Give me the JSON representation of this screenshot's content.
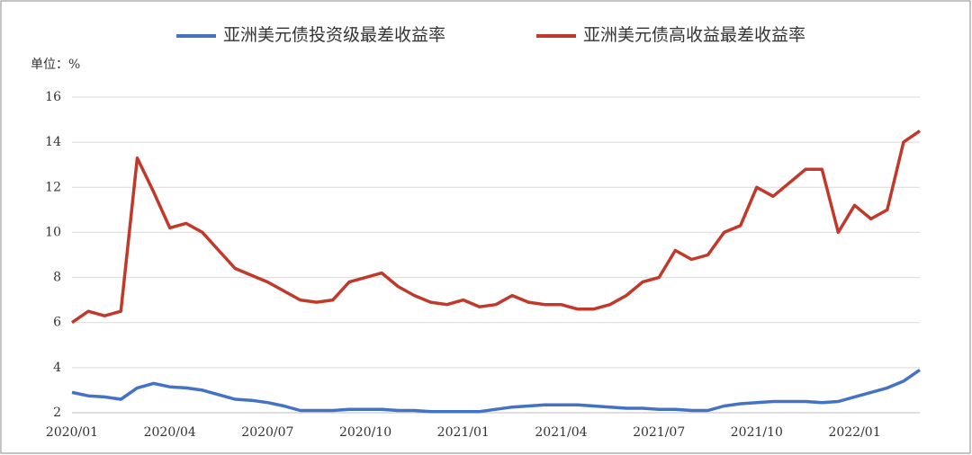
{
  "chart_data": {
    "type": "line",
    "unit_label": "单位：%",
    "categories": [
      "2020/01",
      null,
      null,
      null,
      null,
      null,
      "2020/04",
      null,
      null,
      null,
      null,
      null,
      "2020/07",
      null,
      null,
      null,
      null,
      null,
      "2020/10",
      null,
      null,
      null,
      null,
      null,
      "2021/01",
      null,
      null,
      null,
      null,
      null,
      "2021/04",
      null,
      null,
      null,
      null,
      null,
      "2021/07",
      null,
      null,
      null,
      null,
      null,
      "2021/10",
      null,
      null,
      null,
      null,
      null,
      "2022/01",
      null,
      null,
      null,
      null
    ],
    "series": [
      {
        "name": "亚洲美元债投资级最差收益率",
        "color": "#4472c4",
        "values": [
          2.9,
          2.75,
          2.7,
          2.6,
          3.1,
          3.3,
          3.15,
          3.1,
          3.0,
          2.8,
          2.6,
          2.55,
          2.45,
          2.3,
          2.1,
          2.1,
          2.1,
          2.15,
          2.15,
          2.15,
          2.1,
          2.1,
          2.05,
          2.05,
          2.05,
          2.05,
          2.15,
          2.25,
          2.3,
          2.35,
          2.35,
          2.35,
          2.3,
          2.25,
          2.2,
          2.2,
          2.15,
          2.15,
          2.1,
          2.1,
          2.3,
          2.4,
          2.45,
          2.5,
          2.5,
          2.5,
          2.45,
          2.5,
          2.7,
          2.9,
          3.1,
          3.4,
          3.9
        ]
      },
      {
        "name": "亚洲美元债高收益最差收益率",
        "color": "#c0392b",
        "values": [
          6.0,
          6.5,
          6.3,
          6.5,
          13.3,
          11.8,
          10.2,
          10.4,
          10.0,
          9.2,
          8.4,
          8.1,
          7.8,
          7.4,
          7.0,
          6.9,
          7.0,
          7.8,
          8.0,
          8.2,
          7.6,
          7.2,
          6.9,
          6.8,
          7.0,
          6.7,
          6.8,
          7.2,
          6.9,
          6.8,
          6.8,
          6.6,
          6.6,
          6.8,
          7.2,
          7.8,
          8.0,
          9.2,
          8.8,
          9.0,
          10.0,
          10.3,
          12.0,
          11.6,
          12.2,
          12.8,
          12.8,
          10.0,
          11.2,
          10.6,
          11.0,
          14.0,
          14.5
        ]
      }
    ],
    "ylim": [
      2,
      16
    ],
    "yticks": [
      2,
      4,
      6,
      8,
      10,
      12,
      14,
      16
    ],
    "grid": true
  }
}
